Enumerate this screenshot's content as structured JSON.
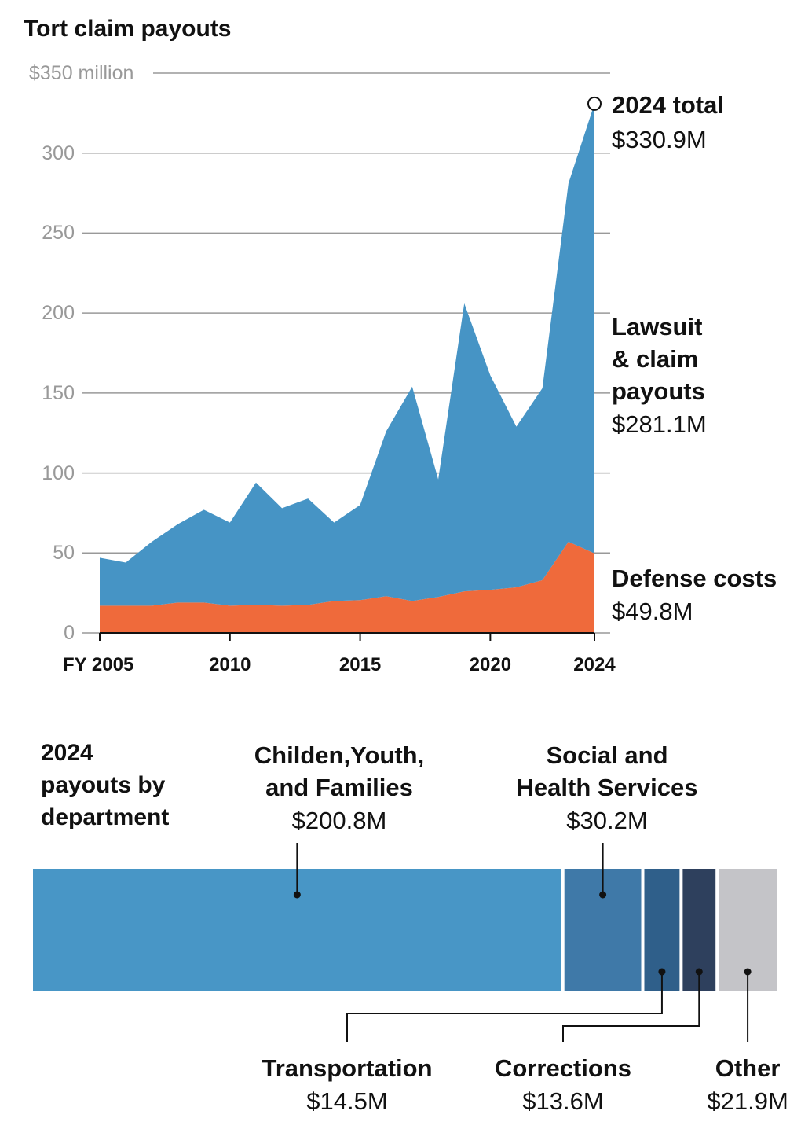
{
  "chart_data": [
    {
      "type": "area",
      "title": "Tort claim payouts",
      "x": [
        2005,
        2006,
        2007,
        2008,
        2009,
        2010,
        2011,
        2012,
        2013,
        2014,
        2015,
        2016,
        2017,
        2018,
        2019,
        2020,
        2021,
        2022,
        2023,
        2024
      ],
      "xlim": [
        2005,
        2024
      ],
      "xticks": [
        {
          "value": 2005,
          "label": "FY 2005"
        },
        2010,
        2015,
        2020,
        2024
      ],
      "ylim": [
        0,
        350
      ],
      "yticks": [
        0,
        50,
        100,
        150,
        200,
        250,
        300,
        {
          "value": 350,
          "label": "$350 million"
        }
      ],
      "grid": true,
      "stacked": true,
      "series": [
        {
          "name": "Defense costs",
          "color": "#ef6a3b",
          "values": [
            17,
            17,
            17,
            19,
            19,
            17,
            17.5,
            17,
            17.5,
            20,
            20.5,
            23,
            20,
            22.5,
            26,
            27,
            28.5,
            33,
            57,
            49.8
          ],
          "value_labels": [
            null,
            null,
            null,
            null,
            null,
            null,
            null,
            null,
            null,
            null,
            null,
            null,
            null,
            null,
            null,
            null,
            null,
            null,
            null,
            "$49.8M"
          ]
        },
        {
          "name": "Lawsuit & claim payouts",
          "color": "#4694c5",
          "values": [
            30,
            27,
            40,
            49,
            58,
            52,
            76.5,
            61,
            66.5,
            49,
            59.5,
            103,
            134,
            73.5,
            180,
            134,
            100.5,
            120,
            224,
            281.1
          ],
          "value_labels": [
            null,
            null,
            null,
            null,
            null,
            null,
            null,
            null,
            null,
            null,
            null,
            null,
            null,
            null,
            null,
            null,
            null,
            null,
            null,
            "$281.1M"
          ]
        }
      ],
      "annotations": [
        {
          "text": "2024 total",
          "x": 2024,
          "value": 330.9,
          "value_label": "$330.9M"
        }
      ]
    },
    {
      "type": "stacked_bar",
      "orientation": "horizontal",
      "title": "2024 payouts by department",
      "categories": [
        "Childen,Youth, and Families",
        "Social and Health Services",
        "Transportation",
        "Corrections",
        "Other"
      ],
      "values": [
        200.8,
        30.2,
        14.5,
        13.6,
        21.9
      ],
      "value_labels": [
        "$200.8M",
        "$30.2M",
        "$14.5M",
        "$13.6M",
        "$21.9M"
      ],
      "colors": [
        "#4896c6",
        "#3f79a8",
        "#2f5f8a",
        "#2e405d",
        "#c4c4c8"
      ]
    }
  ]
}
